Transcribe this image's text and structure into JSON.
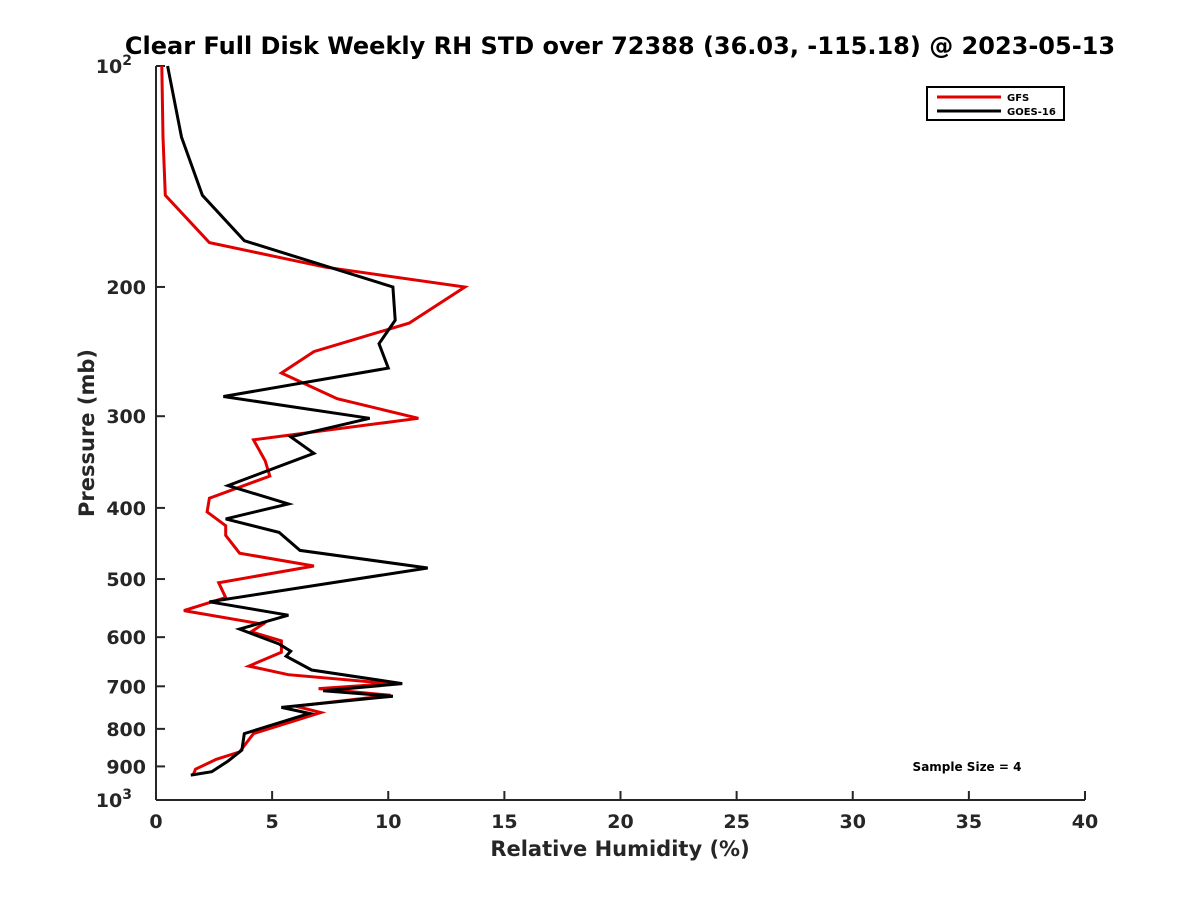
{
  "chart_data": {
    "type": "line",
    "title": "Clear Full Disk Weekly RH STD over 72388 (36.03, -115.18) @ 2023-05-13",
    "xlabel": "Relative Humidity (%)",
    "ylabel": "Pressure (mb)",
    "xlim": [
      0,
      40
    ],
    "ylim": [
      100,
      1000
    ],
    "y_scale": "log",
    "y_reversed": true,
    "x_ticks": [
      "0",
      "5",
      "10",
      "15",
      "20",
      "25",
      "30",
      "35",
      "40"
    ],
    "y_ticks": [
      {
        "value": 100,
        "base": "10",
        "exp": "2"
      },
      {
        "value": 200,
        "text": "200"
      },
      {
        "value": 300,
        "text": "300"
      },
      {
        "value": 400,
        "text": "400"
      },
      {
        "value": 500,
        "text": "500"
      },
      {
        "value": 600,
        "text": "600"
      },
      {
        "value": 700,
        "text": "700"
      },
      {
        "value": 800,
        "text": "800"
      },
      {
        "value": 900,
        "text": "900"
      },
      {
        "value": 1000,
        "base": "10",
        "exp": "3"
      }
    ],
    "legend_position": "top-right",
    "grid": false,
    "series": [
      {
        "name": "GFS",
        "color": "#e00000",
        "points": [
          [
            0.25,
            100
          ],
          [
            0.3,
            125
          ],
          [
            0.4,
            150
          ],
          [
            2.3,
            174
          ],
          [
            7.3,
            188
          ],
          [
            13.3,
            200
          ],
          [
            10.9,
            224
          ],
          [
            6.8,
            245
          ],
          [
            5.4,
            262
          ],
          [
            7.8,
            284
          ],
          [
            11.3,
            302
          ],
          [
            4.2,
            323
          ],
          [
            4.7,
            345
          ],
          [
            4.9,
            362
          ],
          [
            2.3,
            388
          ],
          [
            2.2,
            405
          ],
          [
            3.0,
            423
          ],
          [
            3.0,
            436
          ],
          [
            3.6,
            461
          ],
          [
            6.8,
            480
          ],
          [
            2.7,
            506
          ],
          [
            3.0,
            530
          ],
          [
            1.2,
            552
          ],
          [
            4.6,
            576
          ],
          [
            4.1,
            590
          ],
          [
            5.4,
            607
          ],
          [
            5.4,
            629
          ],
          [
            4.0,
            657
          ],
          [
            5.7,
            675
          ],
          [
            10.1,
            694
          ],
          [
            7.0,
            705
          ],
          [
            10.1,
            720
          ],
          [
            6.0,
            745
          ],
          [
            7.1,
            760
          ],
          [
            4.2,
            812
          ],
          [
            3.6,
            860
          ],
          [
            2.6,
            880
          ],
          [
            1.7,
            908
          ],
          [
            1.6,
            924
          ]
        ]
      },
      {
        "name": "GOES-16",
        "color": "#000000",
        "points": [
          [
            0.5,
            100
          ],
          [
            1.1,
            125
          ],
          [
            2.0,
            150
          ],
          [
            3.8,
            173
          ],
          [
            10.2,
            200
          ],
          [
            10.3,
            222
          ],
          [
            9.6,
            239
          ],
          [
            10.0,
            258
          ],
          [
            2.9,
            282
          ],
          [
            9.2,
            302
          ],
          [
            5.8,
            320
          ],
          [
            6.8,
            337
          ],
          [
            3.1,
            373
          ],
          [
            5.7,
            395
          ],
          [
            3.0,
            414
          ],
          [
            5.3,
            432
          ],
          [
            6.2,
            457
          ],
          [
            11.7,
            483
          ],
          [
            2.3,
            537
          ],
          [
            5.7,
            560
          ],
          [
            3.6,
            585
          ],
          [
            5.3,
            613
          ],
          [
            5.8,
            627
          ],
          [
            5.6,
            637
          ],
          [
            6.7,
            665
          ],
          [
            10.6,
            694
          ],
          [
            7.2,
            710
          ],
          [
            10.2,
            722
          ],
          [
            5.4,
            748
          ],
          [
            6.6,
            762
          ],
          [
            3.8,
            812
          ],
          [
            3.7,
            855
          ],
          [
            3.1,
            885
          ],
          [
            2.4,
            915
          ],
          [
            1.5,
            925
          ]
        ]
      }
    ],
    "annotation": "Sample Size = 4"
  }
}
